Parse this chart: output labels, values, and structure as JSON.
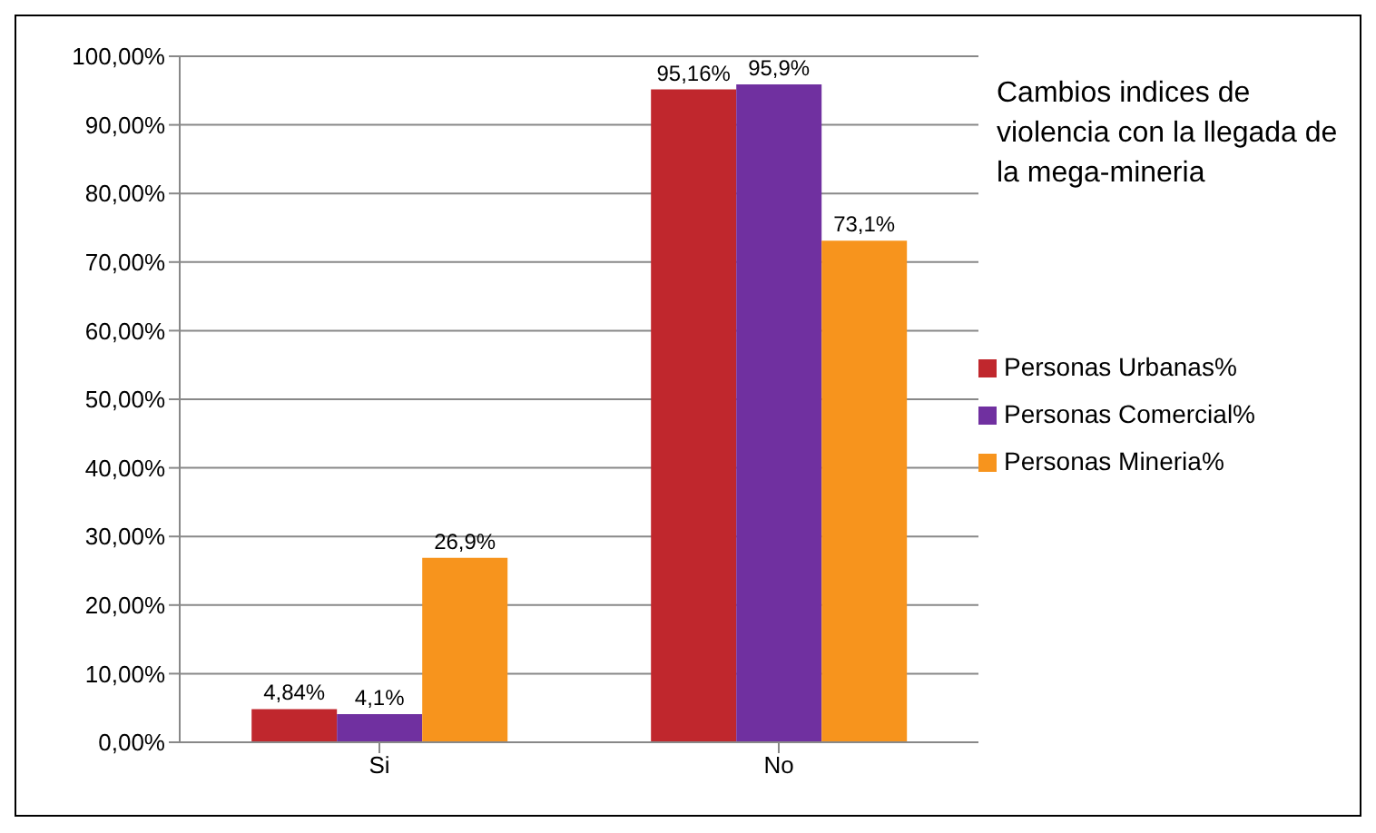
{
  "chart_data": {
    "type": "bar",
    "title": "Cambios indices de violencia con la llegada de la mega-mineria",
    "categories": [
      "Si",
      "No"
    ],
    "series": [
      {
        "name": "Personas Urbanas%",
        "color": "#c0272d",
        "values": [
          4.84,
          95.16
        ],
        "value_labels": [
          "4,84%",
          "95,16%"
        ]
      },
      {
        "name": "Personas Comercial%",
        "color": "#7030a0",
        "values": [
          4.1,
          95.9
        ],
        "value_labels": [
          "4,1%",
          "95,9%"
        ]
      },
      {
        "name": "Personas Mineria%",
        "color": "#f7941d",
        "values": [
          26.9,
          73.1
        ],
        "value_labels": [
          "26,9%",
          "73,1%"
        ]
      }
    ],
    "ylim": [
      0,
      100
    ],
    "yticks": [
      {
        "value": 0,
        "label": "0,00%"
      },
      {
        "value": 10,
        "label": "10,00%"
      },
      {
        "value": 20,
        "label": "20,00%"
      },
      {
        "value": 30,
        "label": "30,00%"
      },
      {
        "value": 40,
        "label": "40,00%"
      },
      {
        "value": 50,
        "label": "50,00%"
      },
      {
        "value": 60,
        "label": "60,00%"
      },
      {
        "value": 70,
        "label": "70,00%"
      },
      {
        "value": 80,
        "label": "80,00%"
      },
      {
        "value": 90,
        "label": "90,00%"
      },
      {
        "value": 100,
        "label": "100,00%"
      }
    ],
    "grid": "y",
    "legend": "right"
  }
}
